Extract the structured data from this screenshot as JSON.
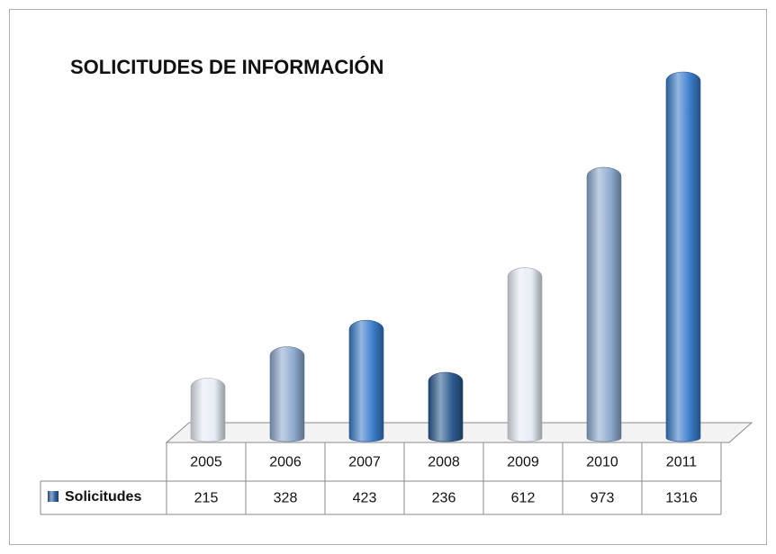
{
  "chart_data": {
    "type": "bar",
    "title": "SOLICITUDES DE INFORMACIÓN",
    "categories": [
      "2005",
      "2006",
      "2007",
      "2008",
      "2009",
      "2010",
      "2011"
    ],
    "series": [
      {
        "name": "Solicitudes",
        "color": "#2f5f9e",
        "values": [
          215,
          328,
          423,
          236,
          612,
          973,
          1316
        ],
        "colors": [
          "#e6edf6",
          "#8eaad0",
          "#3b7cca",
          "#2c5a8f",
          "#e6edf6",
          "#8eaad0",
          "#3b7cca"
        ]
      }
    ]
  }
}
